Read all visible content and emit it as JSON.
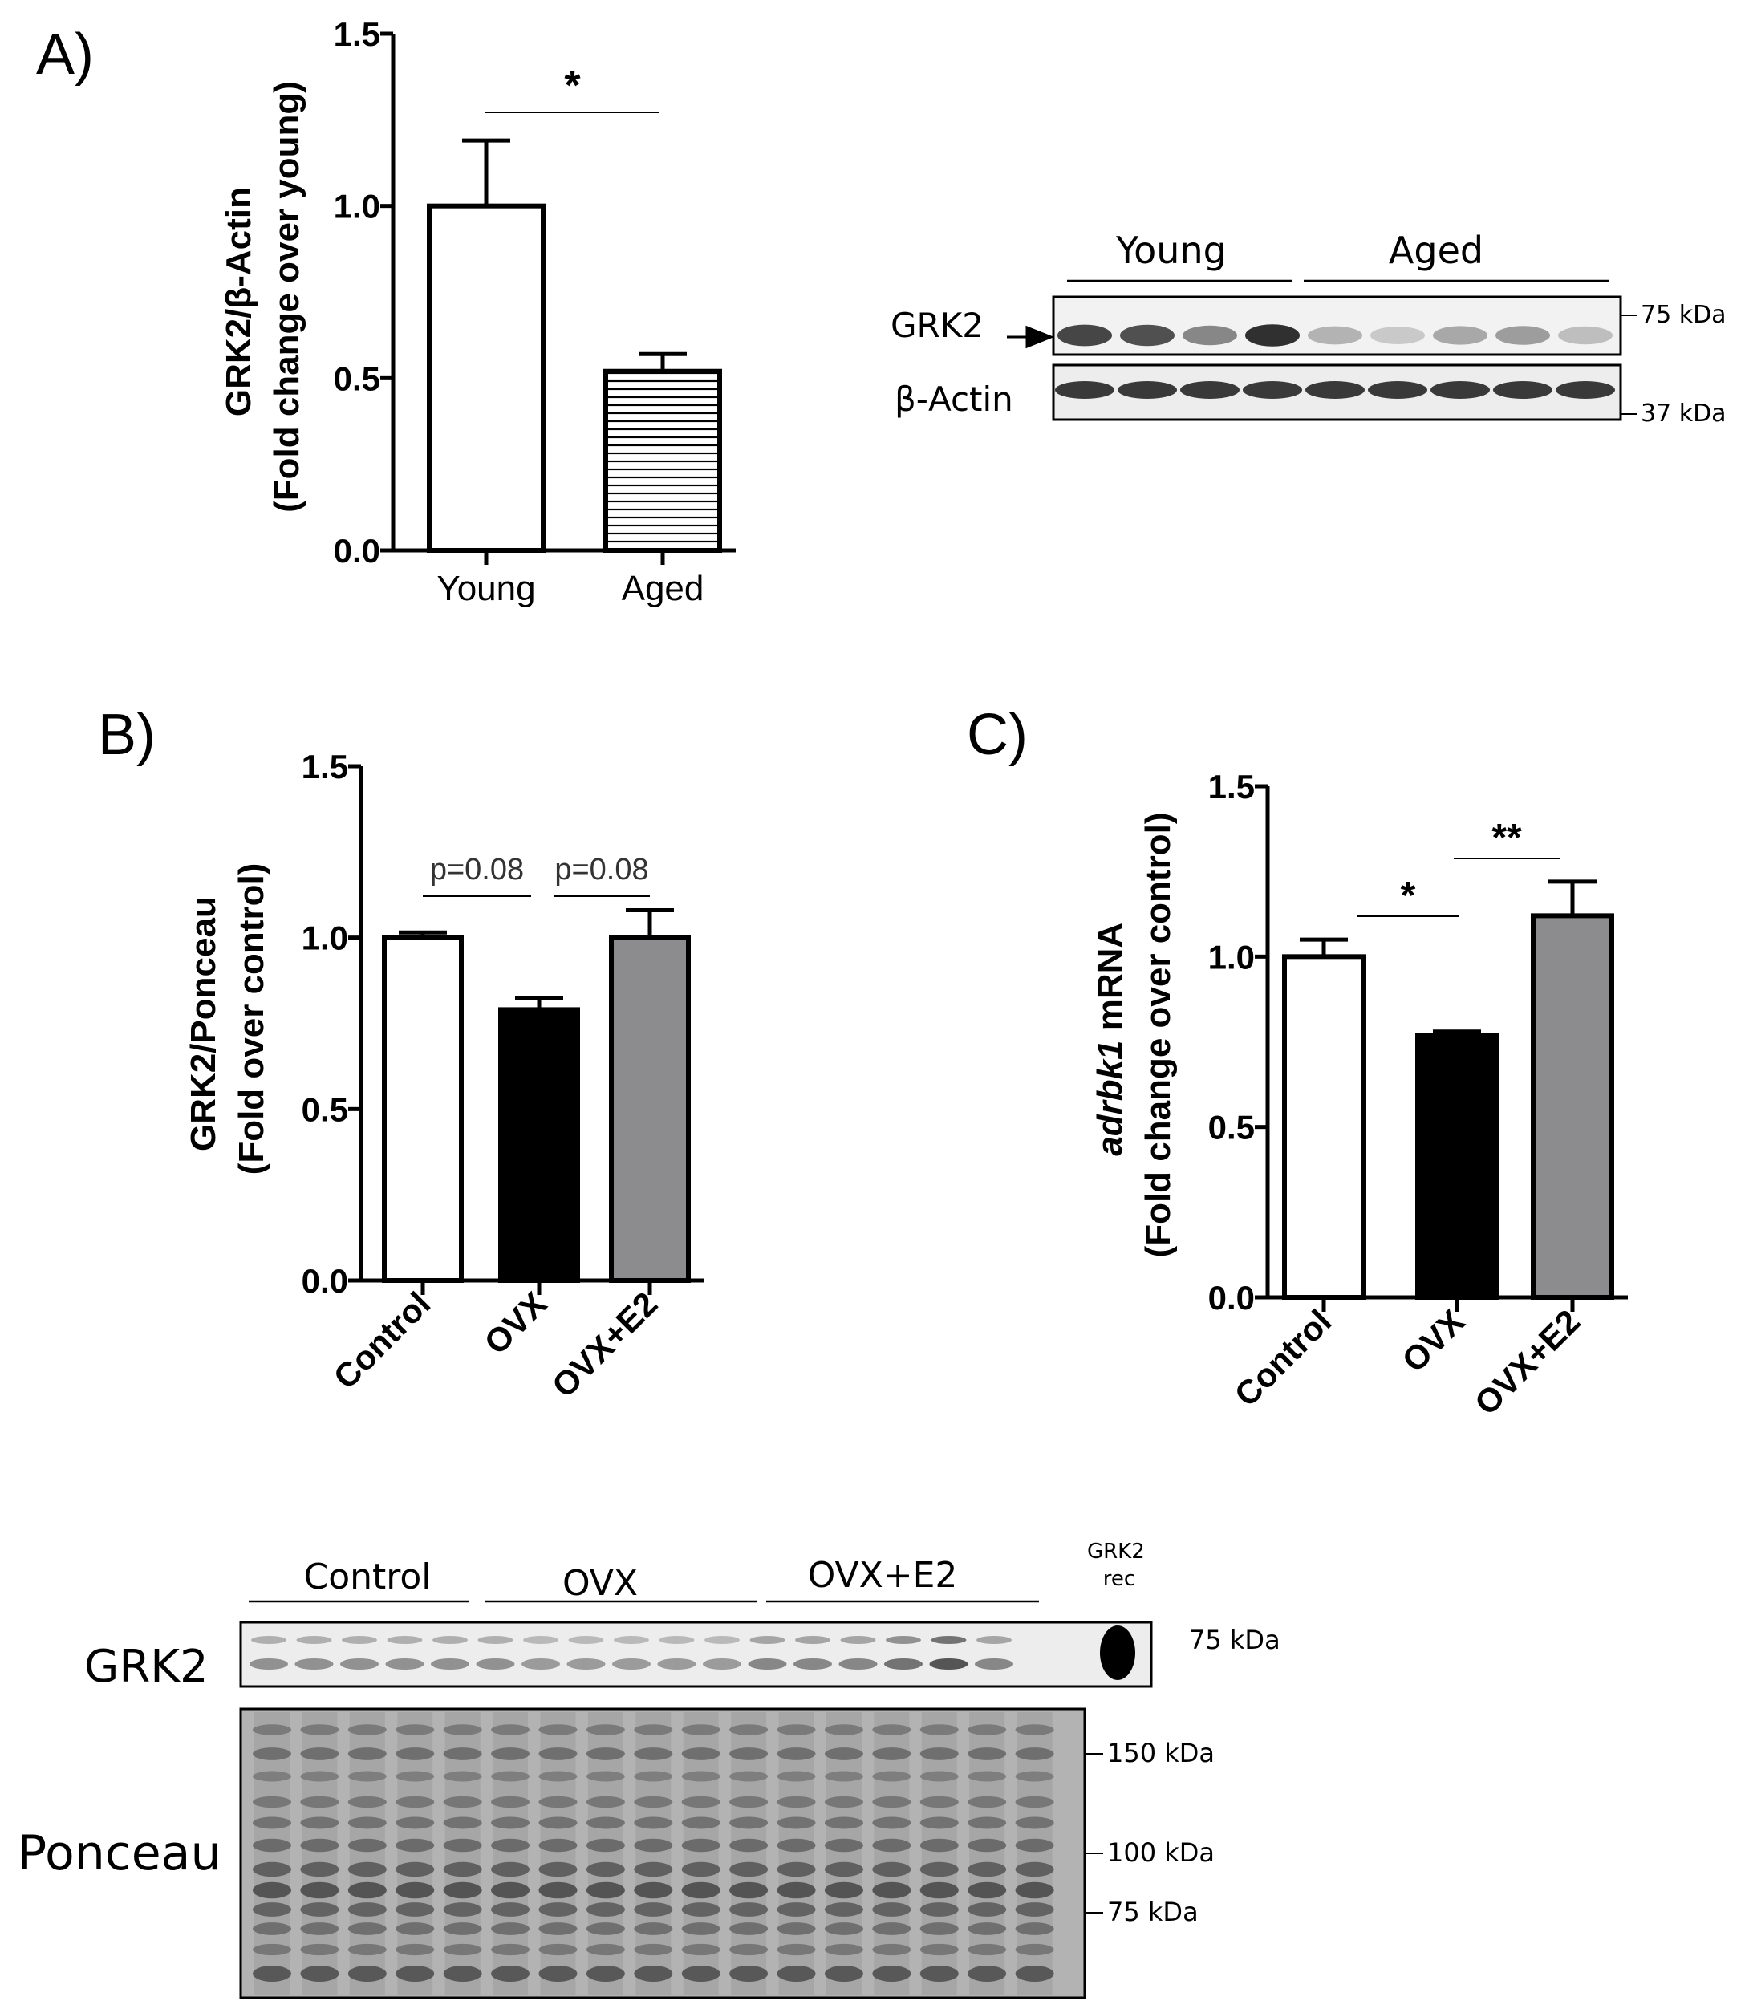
{
  "panels": {
    "a": {
      "label": "A)",
      "ylabel_line1": "GRK2/β-Actin",
      "ylabel_line2": "(Fold change over young)",
      "sig": "*",
      "blot": {
        "groups": [
          "Young",
          "Aged"
        ],
        "rows": [
          "GRK2",
          "β-Actin"
        ],
        "markers": [
          "75 kDa",
          "37 kDa"
        ],
        "grk2_intensity": [
          0.85,
          0.8,
          0.55,
          0.95,
          0.35,
          0.25,
          0.4,
          0.45,
          0.3
        ],
        "actin_intensity": [
          0.9,
          0.9,
          0.9,
          0.9,
          0.9,
          0.9,
          0.9,
          0.9,
          0.9
        ]
      }
    },
    "b": {
      "label": "B)",
      "ylabel_line1": "GRK2/Ponceau",
      "ylabel_line2": "(Fold over control)",
      "sig": [
        "p=0.08",
        "p=0.08"
      ]
    },
    "c": {
      "label": "C)",
      "ylabel_italic": "adrbk1",
      "ylabel_rest": " mRNA",
      "ylabel_line2": "(Fold change over control)",
      "sig": [
        "*",
        "**"
      ]
    },
    "bottom_blot": {
      "groups": [
        "Control",
        "OVX",
        "OVX+E2"
      ],
      "rec_label_line1": "GRK2",
      "rec_label_line2": "rec",
      "rows": [
        "GRK2",
        "Ponceau"
      ],
      "grk2_marker": "75 kDa",
      "ponceau_markers": [
        "150 kDa",
        "100 kDa",
        "75 kDa"
      ],
      "grk2_intensity": [
        0.55,
        0.55,
        0.55,
        0.55,
        0.55,
        0.55,
        0.5,
        0.5,
        0.5,
        0.5,
        0.5,
        0.6,
        0.6,
        0.6,
        0.7,
        0.85,
        0.6,
        1.0
      ]
    }
  },
  "colors": {
    "white": "#ffffff",
    "black": "#000000",
    "gray": "#8c8c8e"
  },
  "chart_data": [
    {
      "type": "bar",
      "panel": "A",
      "categories": [
        "Young",
        "Aged"
      ],
      "values": [
        1.0,
        0.52
      ],
      "errors": [
        0.19,
        0.05
      ],
      "ylabel": "GRK2/β-Actin (Fold change over young)",
      "ylim": [
        0,
        1.5
      ],
      "yticks": [
        "0.0",
        "0.5",
        "1.0",
        "1.5"
      ],
      "fills": [
        "white",
        "horizontal-stripes"
      ],
      "annotations": [
        "*"
      ]
    },
    {
      "type": "bar",
      "panel": "B",
      "categories": [
        "Control",
        "OVX",
        "OVX+E2"
      ],
      "values": [
        1.0,
        0.79,
        1.0
      ],
      "errors": [
        0.015,
        0.035,
        0.08
      ],
      "ylabel": "GRK2/Ponceau (Fold over control)",
      "ylim": [
        0,
        1.5
      ],
      "yticks": [
        "0.0",
        "0.5",
        "1.0",
        "1.5"
      ],
      "fills": [
        "white",
        "black",
        "gray"
      ],
      "annotations": [
        "p=0.08",
        "p=0.08"
      ]
    },
    {
      "type": "bar",
      "panel": "C",
      "categories": [
        "Control",
        "OVX",
        "OVX+E2"
      ],
      "values": [
        1.0,
        0.77,
        1.12
      ],
      "errors": [
        0.05,
        0.01,
        0.1
      ],
      "ylabel": "adrbk1 mRNA (Fold change over control)",
      "ylim": [
        0,
        1.5
      ],
      "yticks": [
        "0.0",
        "0.5",
        "1.0",
        "1.5"
      ],
      "fills": [
        "white",
        "black",
        "gray"
      ],
      "annotations": [
        "*",
        "**"
      ]
    }
  ]
}
